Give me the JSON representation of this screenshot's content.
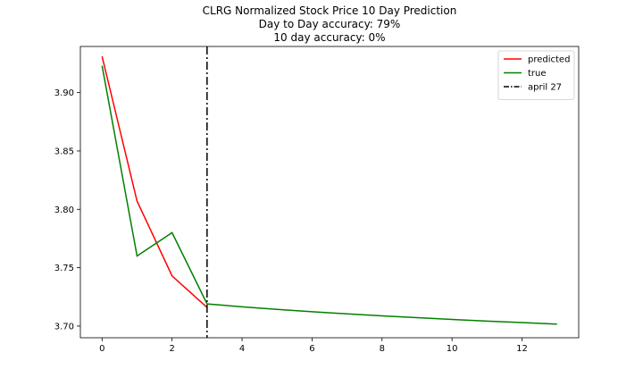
{
  "chart_data": {
    "type": "line",
    "title": "CLRG Normalized Stock Price 10 Day Prediction",
    "subtitle_lines": [
      "Day to Day accuracy: 79%",
      "10 day accuracy: 0%"
    ],
    "xlabel": "",
    "ylabel": "",
    "xlim": [
      -0.62,
      13.62
    ],
    "ylim": [
      3.69,
      3.9395
    ],
    "xticks": [
      0,
      2,
      4,
      6,
      8,
      10,
      12
    ],
    "yticks": [
      3.7,
      3.75,
      3.8,
      3.85,
      3.9
    ],
    "ytick_labels": [
      "3.70",
      "3.75",
      "3.80",
      "3.85",
      "3.90"
    ],
    "grid": false,
    "legend_placement": "top-right",
    "series": [
      {
        "name": "predicted",
        "color": "#ff0000",
        "x": [
          0,
          1,
          2,
          3
        ],
        "y": [
          3.931,
          3.807,
          3.743,
          3.716
        ]
      },
      {
        "name": "true",
        "color": "#008000",
        "x": [
          0,
          1,
          2,
          3,
          4,
          5,
          6,
          7,
          8,
          9,
          10,
          11,
          12,
          13
        ],
        "y": [
          3.923,
          3.76,
          3.78,
          3.719,
          3.7165,
          3.7143,
          3.7123,
          3.7105,
          3.7088,
          3.7072,
          3.7057,
          3.7043,
          3.703,
          3.7017
        ]
      }
    ],
    "vline": {
      "name": "april 27",
      "x": 3,
      "color": "#000000",
      "style": "dashdot"
    }
  }
}
